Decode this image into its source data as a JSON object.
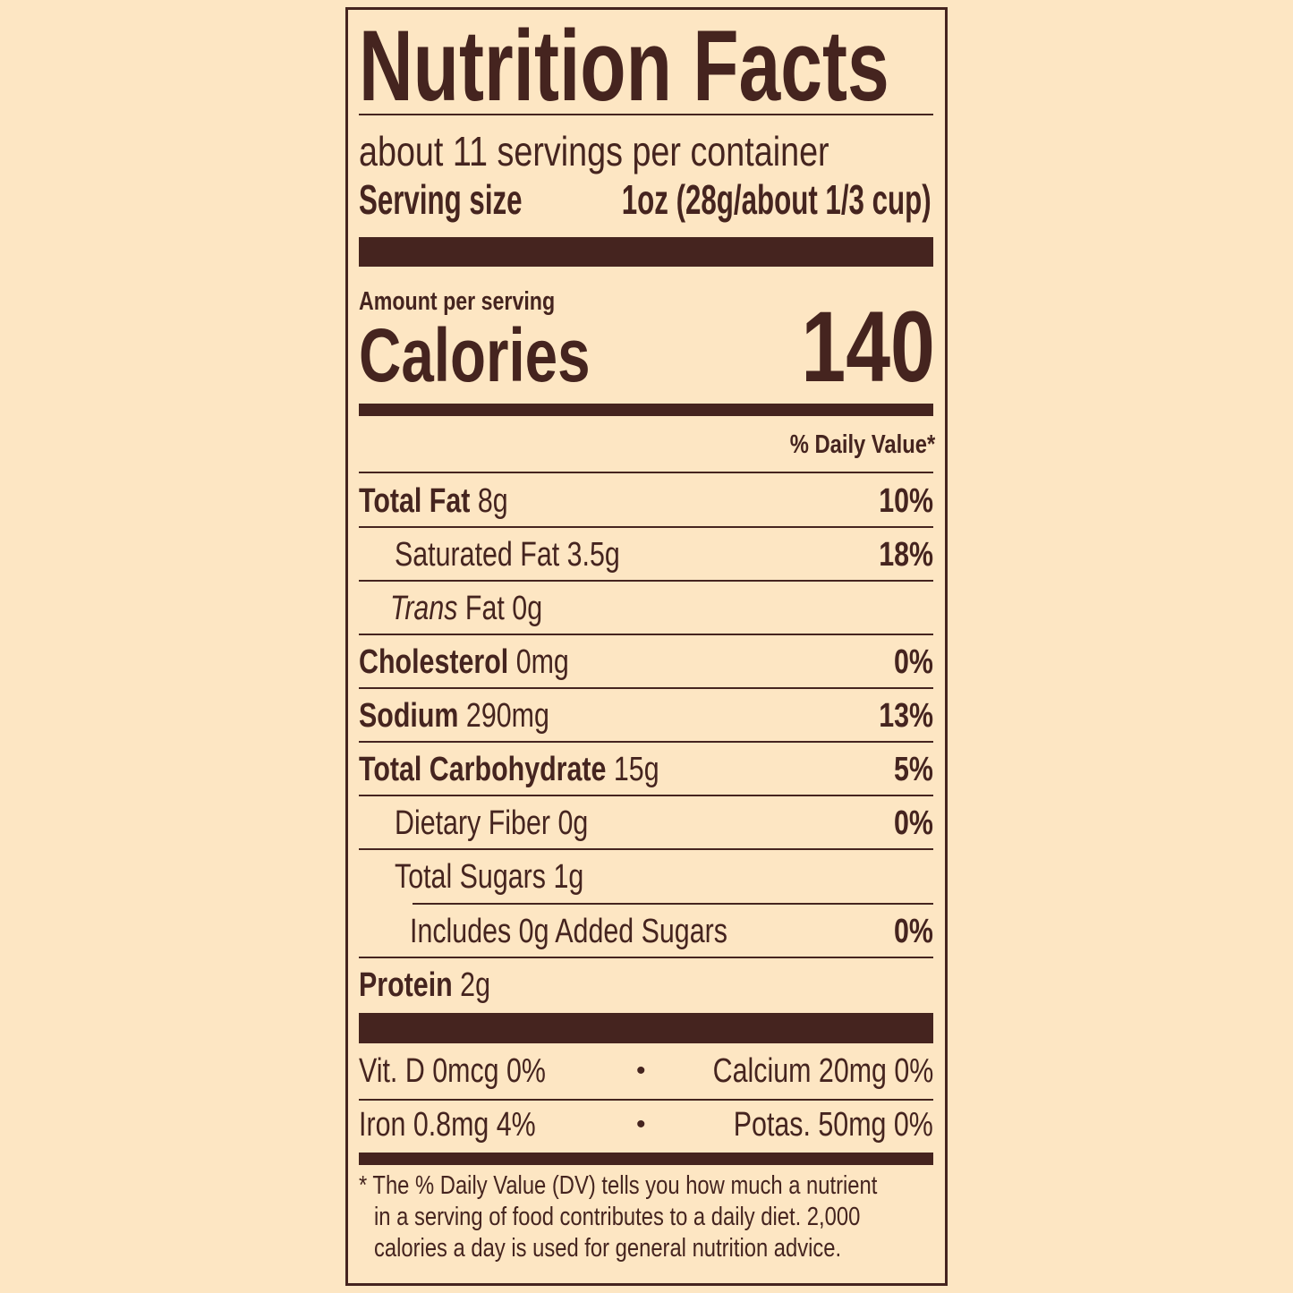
{
  "title": "Nutrition Facts",
  "servings": "about 11 servings per container",
  "serving_size_label": "Serving size",
  "serving_size_value": "1oz (28g/about 1/3 cup)",
  "amount_per_serving": "Amount per serving",
  "calories_label": "Calories",
  "calories_value": "140",
  "dv_header": "% Daily Value*",
  "nutrients": [
    {
      "name": "Total Fat",
      "amount": "8g",
      "dv": "10%"
    },
    {
      "name": "Saturated Fat",
      "amount": "3.5g",
      "dv": "18%"
    },
    {
      "name": "Trans",
      "name_rest": "Fat",
      "amount": "0g"
    },
    {
      "name": "Cholesterol",
      "amount": "0mg",
      "dv": "0%"
    },
    {
      "name": "Sodium",
      "amount": "290mg",
      "dv": "13%"
    },
    {
      "name": "Total Carbohydrate",
      "amount": "15g",
      "dv": "5%"
    },
    {
      "name": "Dietary Fiber",
      "amount": "0g",
      "dv": "0%"
    },
    {
      "name": "Total Sugars",
      "amount": "1g"
    },
    {
      "name": "Includes 0g Added Sugars",
      "dv": "0%"
    },
    {
      "name": "Protein",
      "amount": "2g"
    }
  ],
  "micros": [
    {
      "left": "Vit. D 0mcg 0%",
      "right": "Calcium 20mg 0%"
    },
    {
      "left": "Iron 0.8mg 4%",
      "right": "Potas. 50mg 0%"
    }
  ],
  "bullet": "•",
  "footnote": [
    "* The % Daily Value (DV) tells you how much a nutrient",
    "in a serving of food contributes to a daily diet. 2,000",
    "calories a day is used for general nutrition advice."
  ],
  "colors": {
    "background": "#fde6c3",
    "ink": "#45241f"
  }
}
